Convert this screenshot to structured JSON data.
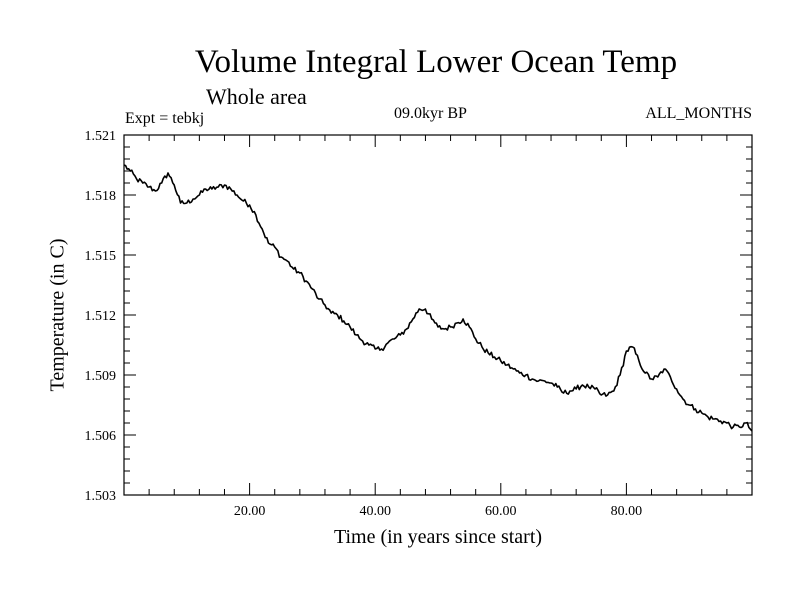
{
  "chart_data": {
    "type": "line",
    "title": "Volume Integral Lower Ocean Temp",
    "subtitle": "Whole area",
    "experiment_label": "Expt = tebkj",
    "period_label": "09.0kyr BP",
    "months_label": "ALL_MONTHS",
    "xlabel": "Time (in years since start)",
    "ylabel": "Temperature (in C)",
    "xlim": [
      0,
      100
    ],
    "ylim": [
      1.503,
      1.521
    ],
    "x_ticks": [
      20,
      40,
      60,
      80
    ],
    "x_tick_labels": [
      "20.00",
      "40.00",
      "60.00",
      "80.00"
    ],
    "y_ticks": [
      1.503,
      1.506,
      1.509,
      1.512,
      1.515,
      1.518,
      1.521
    ],
    "y_tick_labels": [
      "1.503",
      "1.506",
      "1.509",
      "1.512",
      "1.515",
      "1.518",
      "1.521"
    ],
    "grid": false,
    "line_color": "#000000",
    "series": [
      {
        "name": "tebkj",
        "x": [
          0,
          1,
          2,
          3,
          4,
          5,
          6,
          7,
          8,
          9,
          10,
          11,
          12,
          13,
          14,
          15,
          16,
          17,
          18,
          19,
          20,
          21,
          22,
          23,
          24,
          25,
          26,
          27,
          28,
          29,
          30,
          31,
          32,
          33,
          34,
          35,
          36,
          37,
          38,
          39,
          40,
          41,
          42,
          43,
          44,
          45,
          46,
          47,
          48,
          49,
          50,
          51,
          52,
          53,
          54,
          55,
          56,
          57,
          58,
          59,
          60,
          61,
          62,
          63,
          64,
          65,
          66,
          67,
          68,
          69,
          70,
          71,
          72,
          73,
          74,
          75,
          76,
          77,
          78,
          79,
          80,
          81,
          82,
          83,
          84,
          85,
          86,
          87,
          88,
          89,
          90,
          91,
          92,
          93,
          94,
          95,
          96,
          97,
          98,
          99,
          100
        ],
        "y": [
          1.5195,
          1.5192,
          1.5188,
          1.5186,
          1.5184,
          1.5182,
          1.5186,
          1.5191,
          1.5185,
          1.5176,
          1.5176,
          1.5178,
          1.518,
          1.5183,
          1.5183,
          1.5184,
          1.5185,
          1.5183,
          1.518,
          1.5177,
          1.5175,
          1.517,
          1.5163,
          1.5156,
          1.5154,
          1.5149,
          1.5147,
          1.5143,
          1.5141,
          1.5137,
          1.5133,
          1.5128,
          1.5125,
          1.5121,
          1.512,
          1.5117,
          1.5114,
          1.511,
          1.5107,
          1.5105,
          1.5103,
          1.5103,
          1.5106,
          1.5108,
          1.511,
          1.5113,
          1.5118,
          1.5123,
          1.5123,
          1.5118,
          1.5114,
          1.5113,
          1.5114,
          1.5116,
          1.5118,
          1.5114,
          1.5108,
          1.5104,
          1.5101,
          1.5099,
          1.5097,
          1.5095,
          1.5093,
          1.5091,
          1.509,
          1.5088,
          1.5087,
          1.5087,
          1.5086,
          1.5084,
          1.5081,
          1.5082,
          1.5083,
          1.5085,
          1.5084,
          1.5083,
          1.508,
          1.508,
          1.5082,
          1.509,
          1.5102,
          1.5104,
          1.5097,
          1.5091,
          1.5088,
          1.5089,
          1.5093,
          1.5089,
          1.5083,
          1.5078,
          1.5075,
          1.5073,
          1.5071,
          1.5069,
          1.5068,
          1.5067,
          1.5066,
          1.5064,
          1.5064,
          1.5066,
          1.5062
        ]
      }
    ]
  }
}
